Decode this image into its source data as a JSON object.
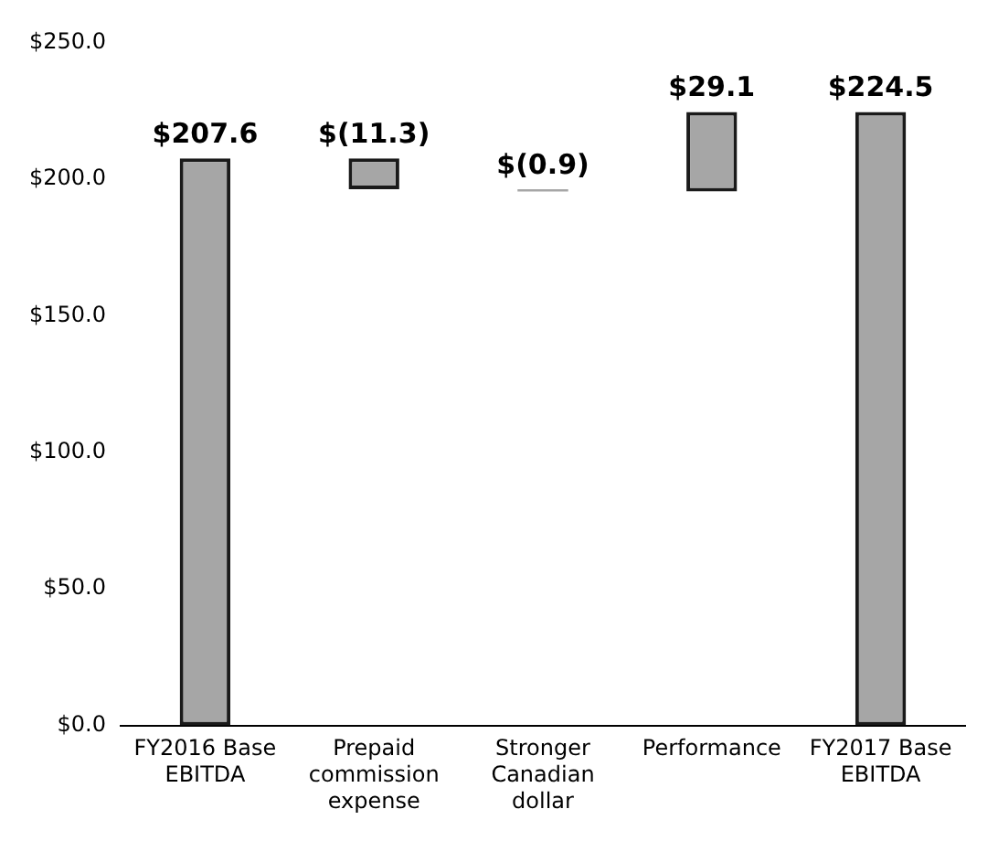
{
  "chart_data": {
    "type": "bar",
    "categories": [
      "FY2016 Base EBITDA",
      "Prepaid commission expense",
      "Stronger Canadian dollar",
      "Performance",
      "FY2017 Base EBITDA"
    ],
    "values": [
      207.6,
      -11.3,
      -0.9,
      29.1,
      224.5
    ],
    "base": [
      0,
      207.6,
      196.3,
      195.4,
      0
    ],
    "value_labels": [
      "$207.6",
      "$(11.3)",
      "$(0.9)",
      "$29.1",
      "$224.5"
    ],
    "color": "#a6a6a6",
    "ylim": [
      0,
      250
    ],
    "yticks": [
      {
        "value": 0,
        "label": "$0.0"
      },
      {
        "value": 50,
        "label": "$50.0"
      },
      {
        "value": 100,
        "label": "$100.0"
      },
      {
        "value": 150,
        "label": "$150.0"
      },
      {
        "value": 200,
        "label": "$200.0"
      },
      {
        "value": 250,
        "label": "$250.0"
      }
    ],
    "grid": false,
    "legend": false
  }
}
